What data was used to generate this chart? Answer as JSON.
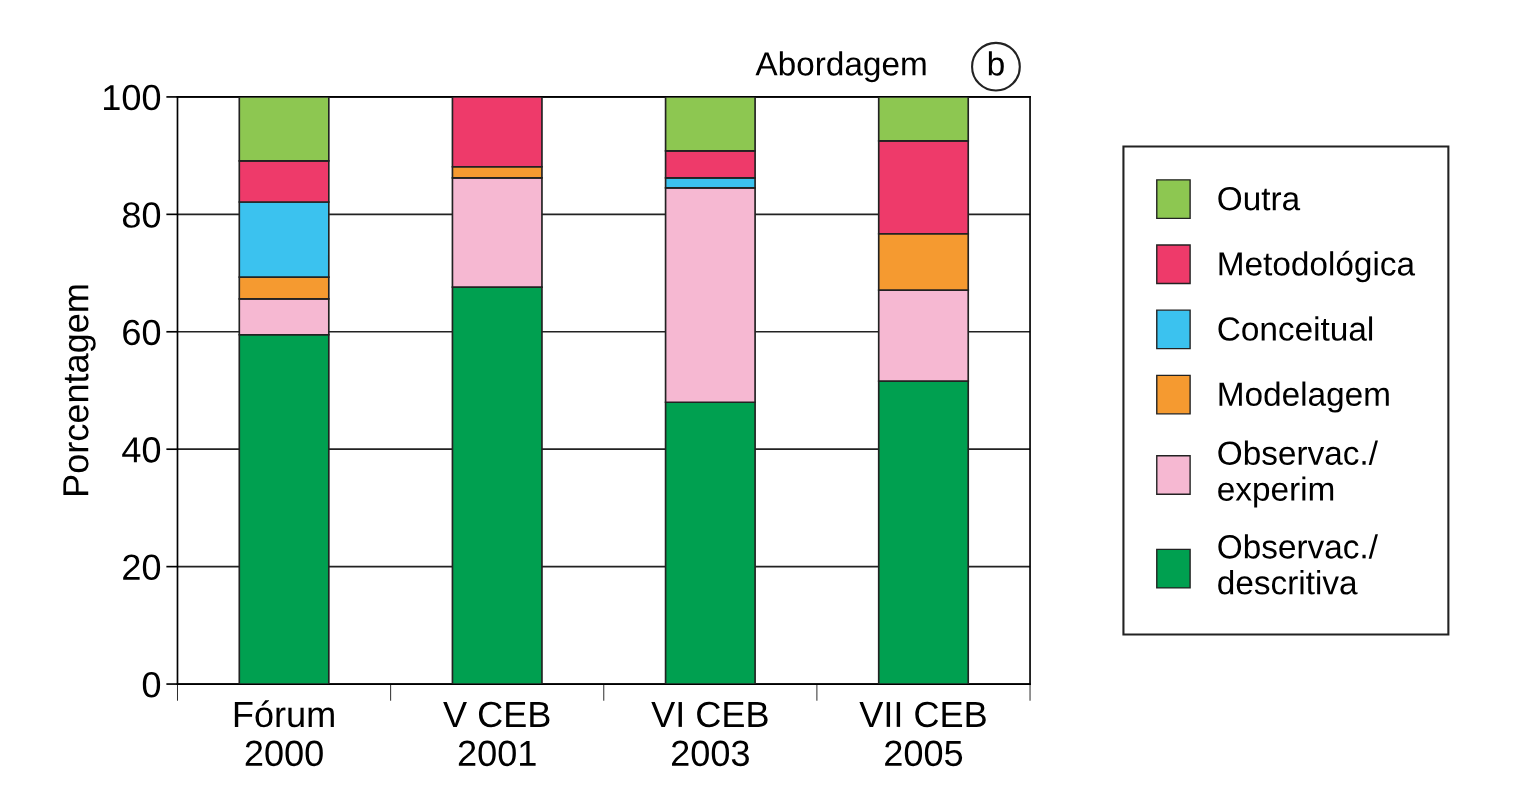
{
  "chart_data": {
    "type": "bar",
    "stacked": true,
    "title": "Abordagem",
    "ylabel": "Porcentagem",
    "annotations": [
      "b"
    ],
    "categories": [
      "Fórum\n2000",
      "V CEB\n2001",
      "VI CEB\n2003",
      "VII CEB\n2005"
    ],
    "series": [
      {
        "name": "Observac./\ndescritiva",
        "color": "#00a050",
        "values": [
          59.5,
          67.6,
          48.0,
          51.6
        ]
      },
      {
        "name": "Observac./\nexperim",
        "color": "#f6b8d2",
        "values": [
          6.1,
          18.6,
          36.5,
          15.5
        ]
      },
      {
        "name": "Modelagem",
        "color": "#f59a30",
        "values": [
          3.7,
          1.9,
          0,
          9.6
        ]
      },
      {
        "name": "Conceitual",
        "color": "#3bc2ef",
        "values": [
          12.8,
          0,
          1.7,
          0
        ]
      },
      {
        "name": "Metodológica",
        "color": "#ee3a6a",
        "values": [
          7.0,
          11.9,
          4.6,
          15.8
        ]
      },
      {
        "name": "Outra",
        "color": "#8dc751",
        "values": [
          10.9,
          0,
          9.2,
          7.5
        ]
      }
    ],
    "ylim": [
      0,
      100
    ],
    "yticks": [
      0,
      20,
      40,
      60,
      80,
      100
    ],
    "grid": "y",
    "legend": "right"
  }
}
